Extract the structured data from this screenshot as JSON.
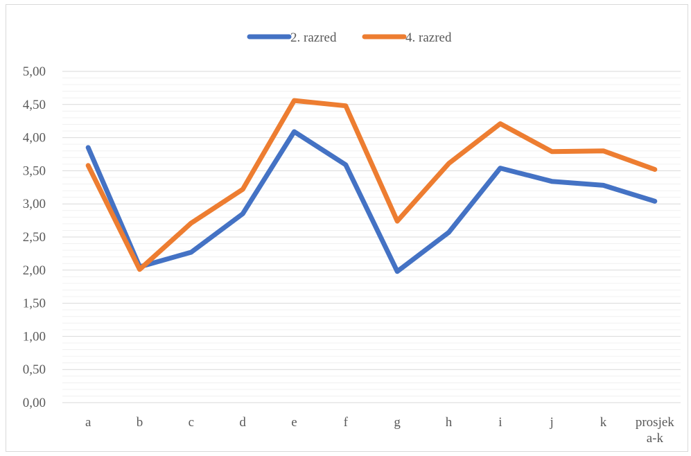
{
  "chart_data": {
    "type": "line",
    "title": "",
    "xlabel": "",
    "ylabel": "",
    "categories": [
      "a",
      "b",
      "c",
      "d",
      "e",
      "f",
      "g",
      "h",
      "i",
      "j",
      "k",
      "prosjek a-k"
    ],
    "category_label_lines": [
      [
        "a"
      ],
      [
        "b"
      ],
      [
        "c"
      ],
      [
        "d"
      ],
      [
        "e"
      ],
      [
        "f"
      ],
      [
        "g"
      ],
      [
        "h"
      ],
      [
        "i"
      ],
      [
        "j"
      ],
      [
        "k"
      ],
      [
        "prosjek",
        "a-k"
      ]
    ],
    "ylim": [
      0,
      5
    ],
    "y_major_step": 0.5,
    "y_minor_step": 0.1,
    "y_tick_labels": [
      "0,00",
      "0,50",
      "1,00",
      "1,50",
      "2,00",
      "2,50",
      "3,00",
      "3,50",
      "4,00",
      "4,50",
      "5,00"
    ],
    "grid": true,
    "legend_position": "top",
    "series": [
      {
        "name": "2. razred",
        "color": "#4472c4",
        "values": [
          3.85,
          2.05,
          2.27,
          2.85,
          4.09,
          3.59,
          1.98,
          2.57,
          3.54,
          3.34,
          3.28,
          3.04
        ]
      },
      {
        "name": "4. razred",
        "color": "#ed7d31",
        "values": [
          3.58,
          2.01,
          2.71,
          3.22,
          4.56,
          4.48,
          2.74,
          3.61,
          4.21,
          3.79,
          3.8,
          3.52
        ]
      }
    ]
  }
}
